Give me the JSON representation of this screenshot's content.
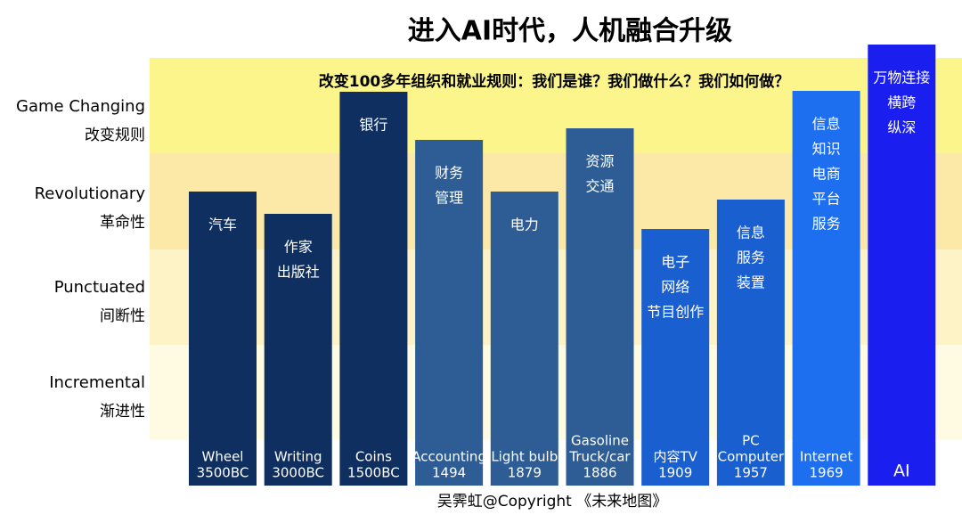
{
  "title": "进入AI时代，人机融合升级",
  "subtitle": "改变100多年组织和就业规则：我们是谁？我们做什么？我们如何做？",
  "levels": [
    {
      "en": "Game Changing",
      "zh": "改变规则"
    },
    {
      "en": "Revolutionary",
      "zh": "革命性"
    },
    {
      "en": "Punctuated",
      "zh": "间断性"
    },
    {
      "en": "Incremental",
      "zh": "渐进性"
    }
  ],
  "bars": [
    {
      "top": [
        "汽车"
      ],
      "bottom": [
        "Wheel",
        "3500BC"
      ]
    },
    {
      "top": [
        "作家",
        "出版社"
      ],
      "bottom": [
        "Writing",
        "3000BC"
      ]
    },
    {
      "top": [
        "银行"
      ],
      "bottom": [
        "Coins",
        "1500BC"
      ]
    },
    {
      "top": [
        "财务",
        "管理"
      ],
      "bottom": [
        "Accounting",
        "1494"
      ]
    },
    {
      "top": [
        "电力"
      ],
      "bottom": [
        "Light bulb",
        "1879"
      ]
    },
    {
      "top": [
        "资源",
        "交通"
      ],
      "bottom": [
        "Gasoline",
        "Truck/car",
        "1886"
      ]
    },
    {
      "top": [
        "电子",
        "网络",
        "节目创作"
      ],
      "bottom": [
        "内容TV",
        "1909"
      ]
    },
    {
      "top": [
        "信息",
        "服务",
        "装置"
      ],
      "bottom": [
        "PC",
        "Computer",
        "1957"
      ]
    },
    {
      "top": [
        "信息",
        "知识",
        "电商",
        "平台",
        "服务"
      ],
      "bottom": [
        "Internet",
        "1969"
      ]
    },
    {
      "top": [
        "万物连接",
        "横跨",
        "纵深"
      ],
      "bottom": [
        "AI"
      ]
    }
  ],
  "footer": "吴霁虹@Copyright 《未来地图》"
}
